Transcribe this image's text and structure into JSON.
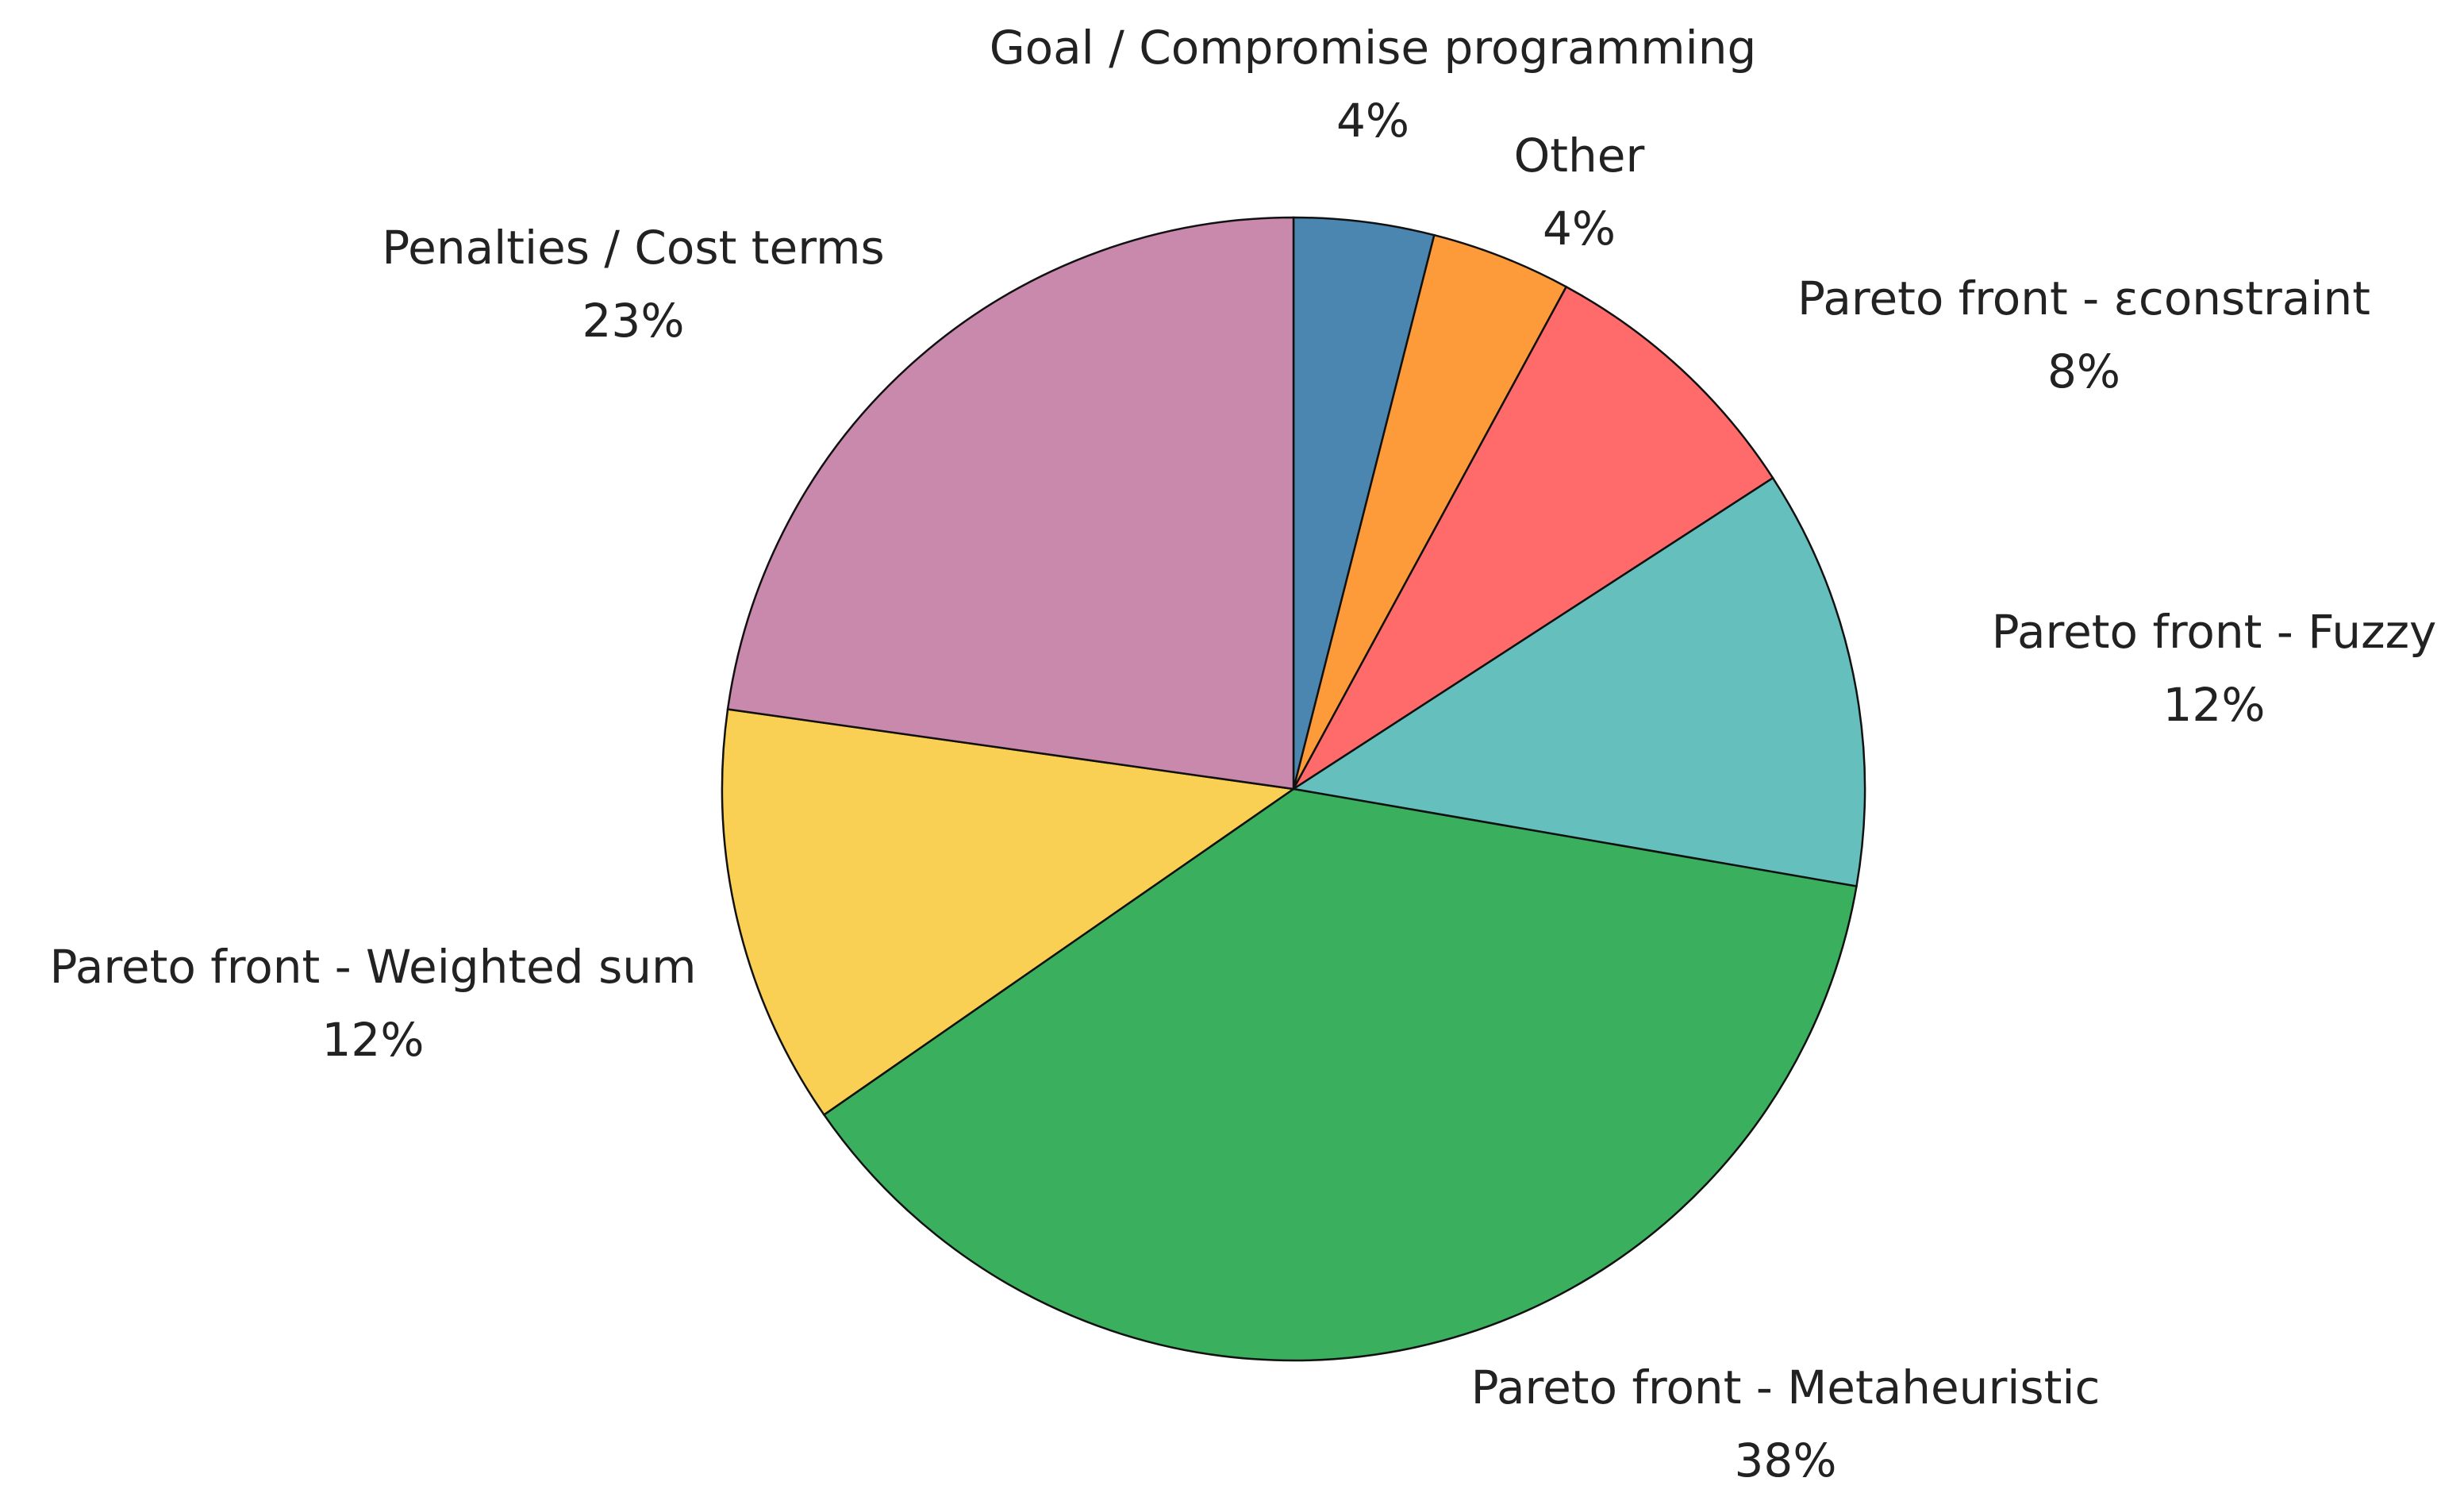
{
  "chart_data": {
    "type": "pie",
    "categories": [
      "Goal / Compromise programming",
      "Other",
      "Pareto front - εconstraint",
      "Pareto front - Fuzzy",
      "Pareto front - Metaheuristic",
      "Pareto front - Weighted sum",
      "Penalties / Cost terms"
    ],
    "values": [
      4,
      4,
      8,
      12,
      38,
      12,
      23
    ],
    "value_labels": [
      "4%",
      "4%",
      "8%",
      "12%",
      "38%",
      "12%",
      "23%"
    ],
    "colors": [
      "#4a86b0",
      "#fd9a3a",
      "#ff6b6b",
      "#65c0bd",
      "#3aaf5d",
      "#fad054",
      "#c989ad"
    ]
  }
}
